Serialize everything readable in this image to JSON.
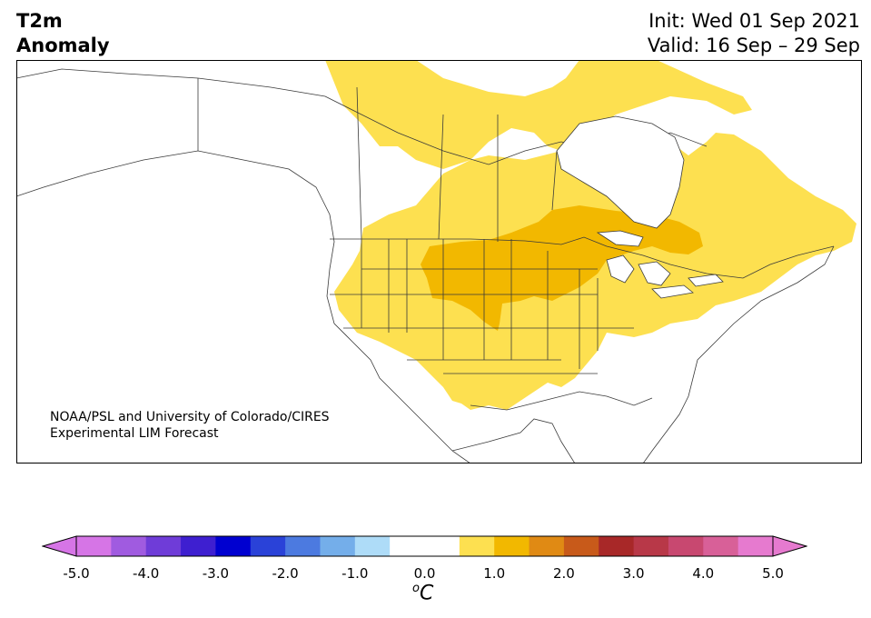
{
  "header": {
    "title_line1": "T2m",
    "title_line2": "Anomaly",
    "init": "Init: Wed 01 Sep 2021",
    "valid": "Valid: 16 Sep – 29 Sep"
  },
  "credit": {
    "line1": "NOAA/PSL and University of Colorado/CIRES",
    "line2": "Experimental LIM Forecast"
  },
  "colorbar": {
    "unit": "C",
    "unit_prefix": "o",
    "tick_labels": [
      "-5.0",
      "-4.0",
      "-3.0",
      "-2.0",
      "-1.0",
      "0.0",
      "1.0",
      "2.0",
      "3.0",
      "4.0",
      "5.0"
    ],
    "colors": [
      "#d675e6",
      "#a05be0",
      "#6f3cd8",
      "#3e1fd0",
      "#0000d0",
      "#2a42d8",
      "#4c7ae0",
      "#74aeea",
      "#aedcf8",
      "#ffffff",
      "#ffffff",
      "#fde050",
      "#f2b800",
      "#e08a14",
      "#c85a1a",
      "#a82828",
      "#b83848",
      "#c84870",
      "#d86098",
      "#e67acf"
    ],
    "under_color": "#d675e6",
    "over_color": "#e67acf"
  },
  "map": {
    "region": "North America",
    "variable": "2-m temperature anomaly",
    "anomaly_colors": {
      "light": "#fde050",
      "medium": "#f2b800"
    }
  }
}
